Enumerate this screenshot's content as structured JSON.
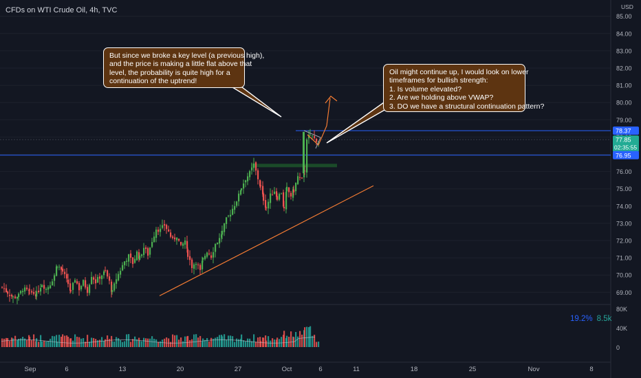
{
  "header": {
    "title": "CFDs on WTI Crude Oil, 4h, TVC",
    "currency": "USD"
  },
  "chart_data": {
    "type": "candlestick",
    "instrument": "CFDs on WTI Crude Oil",
    "interval": "4h",
    "source": "TVC",
    "y_axis": {
      "ticks": [
        "85.00",
        "84.00",
        "83.00",
        "82.00",
        "81.00",
        "80.00",
        "79.00",
        "78.00",
        "77.00",
        "76.00",
        "75.00",
        "74.00",
        "73.00",
        "72.00",
        "71.00",
        "70.00",
        "69.00"
      ],
      "range": [
        68.2,
        85.4
      ]
    },
    "price_labels": [
      {
        "value": "78.37",
        "kind": "upper-level"
      },
      {
        "value": "77.85",
        "kind": "last-price"
      },
      {
        "value": "02:35:55",
        "kind": "countdown"
      },
      {
        "value": "76.95",
        "kind": "lower-level"
      }
    ],
    "x_axis": {
      "ticks": [
        "Sep",
        "6",
        "13",
        "20",
        "27",
        "Oct",
        "6",
        "11",
        "18",
        "25",
        "Nov",
        "8"
      ]
    },
    "volume_axis": {
      "ticks": [
        "80K",
        "40K",
        "0"
      ]
    },
    "volume_readout": {
      "percent": "19.2%",
      "value": "8.5k"
    },
    "horizontal_levels": [
      78.37,
      76.95
    ],
    "zone": {
      "low": 76.25,
      "high": 76.45
    },
    "trendline": {
      "from": 68.0,
      "to": 74.7
    },
    "candles_approx_close_path": [
      [
        0,
        69.3
      ],
      [
        8,
        69.0
      ],
      [
        16,
        68.7
      ],
      [
        24,
        68.8
      ],
      [
        30,
        69.2
      ],
      [
        40,
        69.0
      ],
      [
        50,
        68.9
      ],
      [
        58,
        69.5
      ],
      [
        64,
        69.2
      ],
      [
        70,
        69.5
      ],
      [
        76,
        70.0
      ],
      [
        80,
        70.6
      ],
      [
        88,
        70.2
      ],
      [
        96,
        69.5
      ],
      [
        100,
        69.0
      ],
      [
        106,
        69.8
      ],
      [
        112,
        69.2
      ],
      [
        118,
        69.6
      ],
      [
        124,
        69.1
      ],
      [
        130,
        70.0
      ],
      [
        136,
        69.6
      ],
      [
        142,
        69.9
      ],
      [
        150,
        70.2
      ],
      [
        156,
        69.6
      ],
      [
        160,
        69.0
      ],
      [
        166,
        69.8
      ],
      [
        172,
        70.3
      ],
      [
        178,
        70.8
      ],
      [
        184,
        71.1
      ],
      [
        190,
        70.7
      ],
      [
        196,
        71.3
      ],
      [
        200,
        71.0
      ],
      [
        206,
        71.6
      ],
      [
        212,
        71.2
      ],
      [
        218,
        72.0
      ],
      [
        224,
        72.7
      ],
      [
        230,
        72.6
      ],
      [
        236,
        72.9
      ],
      [
        242,
        72.5
      ],
      [
        248,
        72.0
      ],
      [
        254,
        72.3
      ],
      [
        260,
        71.6
      ],
      [
        266,
        72.0
      ],
      [
        270,
        71.2
      ],
      [
        276,
        70.5
      ],
      [
        282,
        70.8
      ],
      [
        288,
        70.2
      ],
      [
        292,
        70.9
      ],
      [
        298,
        71.4
      ],
      [
        304,
        71.1
      ],
      [
        310,
        71.8
      ],
      [
        316,
        72.1
      ],
      [
        320,
        72.5
      ],
      [
        326,
        73.2
      ],
      [
        332,
        73.6
      ],
      [
        338,
        74.1
      ],
      [
        344,
        74.6
      ],
      [
        348,
        75.1
      ],
      [
        354,
        75.6
      ],
      [
        360,
        75.9
      ],
      [
        366,
        76.4
      ],
      [
        372,
        75.6
      ],
      [
        376,
        75.1
      ],
      [
        380,
        74.4
      ],
      [
        384,
        73.9
      ],
      [
        390,
        74.6
      ],
      [
        396,
        74.9
      ],
      [
        400,
        74.5
      ],
      [
        406,
        74.8
      ],
      [
        410,
        73.8
      ],
      [
        414,
        75.0
      ],
      [
        420,
        74.6
      ],
      [
        424,
        74.9
      ],
      [
        430,
        75.7
      ],
      [
        436,
        75.5
      ],
      [
        440,
        76.1
      ],
      [
        443,
        77.9
      ],
      [
        448,
        78.2
      ],
      [
        454,
        77.9
      ],
      [
        460,
        77.8
      ]
    ],
    "annotations": [
      {
        "lines": [
          "But since we broke a key level (a previous high),",
          "and the price is making a little flat above that",
          "level, the probability is quite high for a",
          "continuation of the uptrend!"
        ]
      },
      {
        "lines": [
          "Oil might continue up, I would look on lower",
          "timeframes for bullish strength:",
          "1. Is volume elevated?",
          "2. Are we holding above VWAP?",
          "3. DO we have a structural continuation pattern?"
        ]
      }
    ]
  },
  "colors": {
    "background": "#131722",
    "up": "#4caf50",
    "down": "#ef5350",
    "level_line": "#2962ff",
    "trendline": "#f57c33",
    "zone": "#1b4d2a",
    "callout_bg": "#5d3411",
    "volume_up": "#26a69a",
    "volume_down": "#ef5350"
  }
}
